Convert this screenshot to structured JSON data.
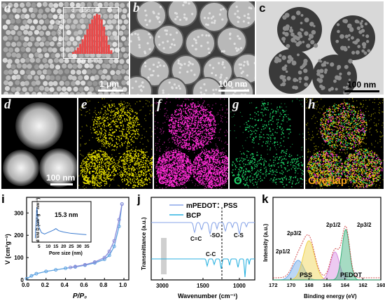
{
  "panels": {
    "a": {
      "label": "a",
      "scale": "1 μm",
      "inset_d": "d = 156 nm",
      "inset_ylabel": "Intensity (a.u.)",
      "inset_xlabel": "Size (nm)"
    },
    "b": {
      "label": "b",
      "scale": "100 nm"
    },
    "c": {
      "label": "c",
      "scale": "100 nm"
    },
    "d": {
      "label": "d",
      "scale": "100 nm"
    },
    "e": {
      "label": "e",
      "element": "S",
      "color": "#e6e000"
    },
    "f": {
      "label": "f",
      "element": "C",
      "color": "#ff2cd6"
    },
    "g": {
      "label": "g",
      "element": "O",
      "color": "#1fd86a"
    },
    "h": {
      "label": "h",
      "element": "Overlap",
      "color": "#f2a21a"
    }
  },
  "plot_i": {
    "label": "i",
    "ylabel": "V (cm³g⁻¹)",
    "xlabel": "P/P₀",
    "xticks": [
      "0.0",
      "0.2",
      "0.4",
      "0.6",
      "0.8",
      "1.0"
    ],
    "yticks": [
      "0",
      "100",
      "200",
      "300"
    ],
    "inset_ylabel": "d V/d D (cm³ g⁻¹ nm⁻¹)",
    "inset_xlabel": "Pore size (nm)",
    "inset_xticks": [
      "5",
      "10",
      "15",
      "20",
      "25",
      "30",
      "35"
    ],
    "inset_annotation": "15.3 nm"
  },
  "plot_j": {
    "label": "j",
    "ylabel": "Transmittance (a.u.)",
    "xlabel": "Wavenumber (cm⁻¹)",
    "xticks": [
      "3000",
      "1500",
      "1000"
    ],
    "legend": [
      "mPEDOT：PSS",
      "BCP"
    ],
    "annotations": [
      "C=C",
      "-SO₃",
      "C-S",
      "C-C"
    ]
  },
  "plot_k": {
    "label": "k",
    "ylabel": "Intensity (a.u.)",
    "xlabel": "Binding energy (eV)",
    "xticks": [
      "172",
      "170",
      "168",
      "166",
      "164",
      "162",
      "160"
    ],
    "annotations": [
      "2p3/2",
      "2p1/2",
      "2p1/2",
      "2p3/2",
      "PSS",
      "PEDOT"
    ]
  },
  "chart_data": [
    {
      "type": "line",
      "xlabel": "P/P₀",
      "ylabel": "V (cm³g⁻¹)",
      "xlim": [
        0,
        1.05
      ],
      "ylim": [
        0,
        370
      ],
      "series": [
        {
          "name": "",
          "x": [
            0.0,
            0.05,
            0.1,
            0.2,
            0.3,
            0.4,
            0.5,
            0.6,
            0.7,
            0.8,
            0.85,
            0.9,
            0.95,
            0.98
          ],
          "values": [
            5,
            18,
            28,
            38,
            45,
            52,
            58,
            66,
            76,
            92,
            110,
            150,
            240,
            340
          ]
        },
        {
          "name": "",
          "x": [
            0.98,
            0.95,
            0.9,
            0.85,
            0.8,
            0.7,
            0.6,
            0.5,
            0.45
          ],
          "values": [
            340,
            270,
            175,
            128,
            100,
            80,
            68,
            60,
            56
          ]
        }
      ]
    },
    {
      "type": "line",
      "xlabel": "Pore size (nm)",
      "ylabel": "d V/d D (cm³ g⁻¹ nm⁻¹)",
      "x": [
        2,
        3,
        4,
        6,
        8,
        10,
        12,
        14,
        15.3,
        17,
        20,
        25,
        30,
        35
      ],
      "values": [
        0.3,
        2.6,
        1.2,
        0.7,
        0.6,
        0.7,
        0.8,
        0.9,
        1.0,
        0.85,
        0.75,
        0.65,
        0.6,
        0.55
      ]
    }
  ]
}
